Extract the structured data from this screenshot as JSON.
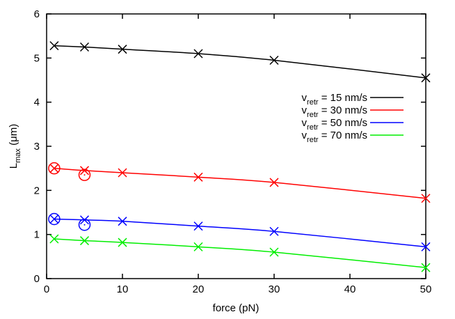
{
  "chart_data": {
    "type": "line",
    "xlabel": "force (pN)",
    "ylabel": {
      "main": "L",
      "sub": "max",
      "unit": " (μm)"
    },
    "xlim": [
      0,
      50
    ],
    "ylim": [
      0,
      6
    ],
    "xticks": [
      0,
      10,
      20,
      30,
      40,
      50
    ],
    "yticks": [
      0,
      1,
      2,
      3,
      4,
      5,
      6
    ],
    "grid": false,
    "legend_position": "right",
    "x": [
      1,
      5,
      10,
      20,
      30,
      50
    ],
    "series": [
      {
        "name": "v",
        "name_sub": "retr",
        "name_rest": " = 15 nm/s",
        "color": "#000000",
        "values": [
          5.28,
          5.25,
          5.2,
          5.1,
          4.95,
          4.55
        ],
        "circles": []
      },
      {
        "name": "v",
        "name_sub": "retr",
        "name_rest": " = 30 nm/s",
        "color": "#ff0000",
        "values": [
          2.5,
          2.45,
          2.4,
          2.3,
          2.18,
          1.82
        ],
        "circles": [
          [
            1,
            2.5
          ],
          [
            5,
            2.35
          ]
        ]
      },
      {
        "name": "v",
        "name_sub": "retr",
        "name_rest": " = 50 nm/s",
        "color": "#0000ff",
        "values": [
          1.35,
          1.33,
          1.3,
          1.19,
          1.07,
          0.72
        ],
        "circles": [
          [
            1,
            1.35
          ],
          [
            5,
            1.22
          ]
        ]
      },
      {
        "name": "v",
        "name_sub": "retr",
        "name_rest": " = 70 nm/s",
        "color": "#00ee00",
        "values": [
          0.9,
          0.86,
          0.82,
          0.72,
          0.6,
          0.25
        ],
        "circles": []
      }
    ]
  }
}
